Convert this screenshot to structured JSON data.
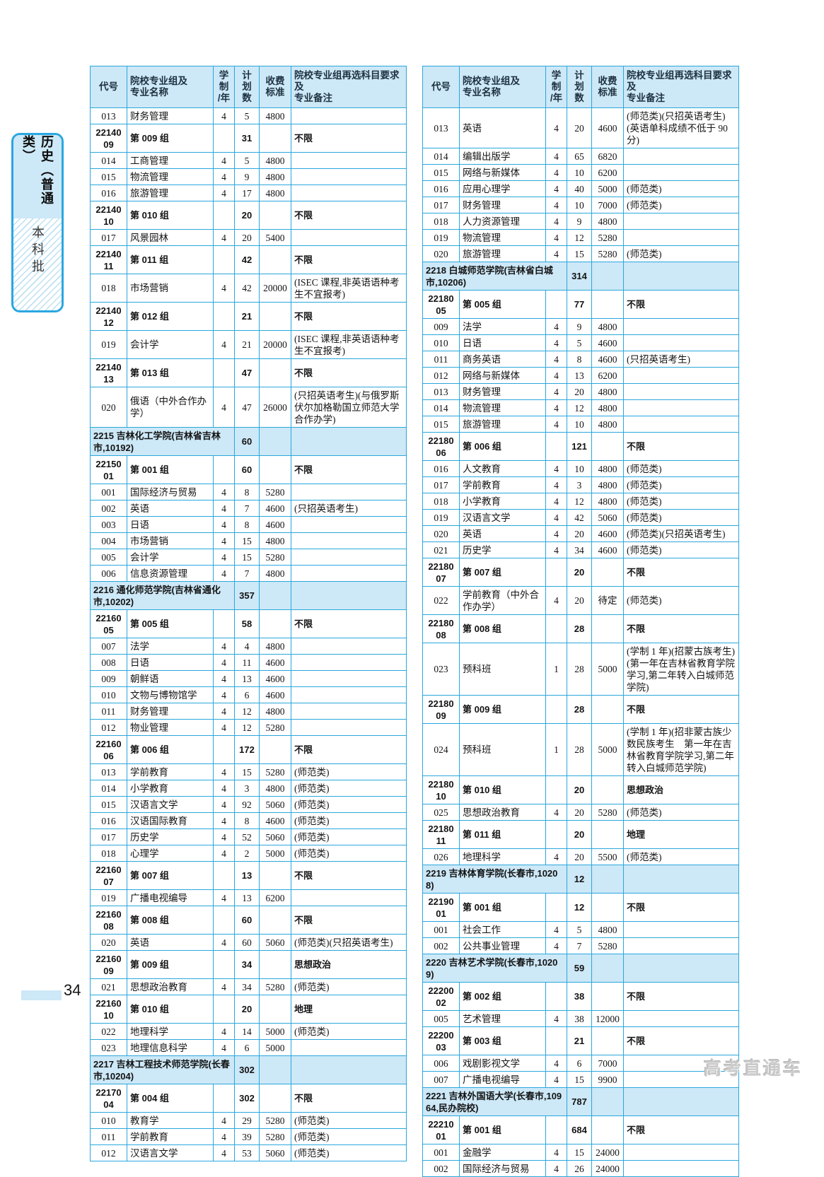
{
  "page": {
    "number": "34",
    "watermark": "高考直通车"
  },
  "sidebar": {
    "title": "历史（普通类）",
    "subtitle": "本科批"
  },
  "colors": {
    "table_border": "#2aa7dd",
    "tab_border": "#2aa7e0",
    "panel_bg": "#cde8f7",
    "stripe": "#bfe0f2"
  },
  "columns": [
    "代号",
    "院校专业组及\n专业名称",
    "学\n制\n/年",
    "计\n划\n数",
    "收费\n标准",
    "院校专业组再选科目要求及\n专业备注"
  ],
  "left_table": {
    "rows": [
      {
        "t": "m",
        "code": "013",
        "name": "财务管理",
        "yr": "4",
        "plan": "5",
        "fee": "4800",
        "note": ""
      },
      {
        "t": "g",
        "code": "2214009",
        "name": "第 009 组",
        "plan": "31",
        "note": "不限"
      },
      {
        "t": "m",
        "code": "014",
        "name": "工商管理",
        "yr": "4",
        "plan": "5",
        "fee": "4800",
        "note": ""
      },
      {
        "t": "m",
        "code": "015",
        "name": "物流管理",
        "yr": "4",
        "plan": "9",
        "fee": "4800",
        "note": ""
      },
      {
        "t": "m",
        "code": "016",
        "name": "旅游管理",
        "yr": "4",
        "plan": "17",
        "fee": "4800",
        "note": ""
      },
      {
        "t": "g",
        "code": "2214010",
        "name": "第 010 组",
        "plan": "20",
        "note": "不限"
      },
      {
        "t": "m",
        "code": "017",
        "name": "风景园林",
        "yr": "4",
        "plan": "20",
        "fee": "5400",
        "note": ""
      },
      {
        "t": "g",
        "code": "2214011",
        "name": "第 011 组",
        "plan": "42",
        "note": "不限"
      },
      {
        "t": "m",
        "code": "018",
        "name": "市场营销",
        "yr": "4",
        "plan": "42",
        "fee": "20000",
        "note": "(ISEC 课程,非英语语种考生不宜报考)"
      },
      {
        "t": "g",
        "code": "2214012",
        "name": "第 012 组",
        "plan": "21",
        "note": "不限"
      },
      {
        "t": "m",
        "code": "019",
        "name": "会计学",
        "yr": "4",
        "plan": "21",
        "fee": "20000",
        "note": "(ISEC 课程,非英语语种考生不宜报考)"
      },
      {
        "t": "g",
        "code": "2214013",
        "name": "第 013 组",
        "plan": "47",
        "note": "不限"
      },
      {
        "t": "m",
        "code": "020",
        "name": "俄语（中外合作办学）",
        "yr": "4",
        "plan": "47",
        "fee": "26000",
        "note": "(只招英语考生)(与俄罗斯伏尔加格勒国立师范大学合作办学)"
      },
      {
        "t": "i",
        "name": "2215 吉林化工学院(吉林省吉林市,10192)",
        "plan": "60"
      },
      {
        "t": "g",
        "code": "2215001",
        "name": "第 001 组",
        "plan": "60",
        "note": "不限"
      },
      {
        "t": "m",
        "code": "001",
        "name": "国际经济与贸易",
        "yr": "4",
        "plan": "8",
        "fee": "5280",
        "note": ""
      },
      {
        "t": "m",
        "code": "002",
        "name": "英语",
        "yr": "4",
        "plan": "7",
        "fee": "4600",
        "note": "(只招英语考生)"
      },
      {
        "t": "m",
        "code": "003",
        "name": "日语",
        "yr": "4",
        "plan": "8",
        "fee": "4600",
        "note": ""
      },
      {
        "t": "m",
        "code": "004",
        "name": "市场营销",
        "yr": "4",
        "plan": "15",
        "fee": "4800",
        "note": ""
      },
      {
        "t": "m",
        "code": "005",
        "name": "会计学",
        "yr": "4",
        "plan": "15",
        "fee": "5280",
        "note": ""
      },
      {
        "t": "m",
        "code": "006",
        "name": "信息资源管理",
        "yr": "4",
        "plan": "7",
        "fee": "4800",
        "note": ""
      },
      {
        "t": "i",
        "name": "2216 通化师范学院(吉林省通化市,10202)",
        "plan": "357"
      },
      {
        "t": "g",
        "code": "2216005",
        "name": "第 005 组",
        "plan": "58",
        "note": "不限"
      },
      {
        "t": "m",
        "code": "007",
        "name": "法学",
        "yr": "4",
        "plan": "4",
        "fee": "4800",
        "note": ""
      },
      {
        "t": "m",
        "code": "008",
        "name": "日语",
        "yr": "4",
        "plan": "11",
        "fee": "4600",
        "note": ""
      },
      {
        "t": "m",
        "code": "009",
        "name": "朝鲜语",
        "yr": "4",
        "plan": "13",
        "fee": "4600",
        "note": ""
      },
      {
        "t": "m",
        "code": "010",
        "name": "文物与博物馆学",
        "yr": "4",
        "plan": "6",
        "fee": "4600",
        "note": ""
      },
      {
        "t": "m",
        "code": "011",
        "name": "财务管理",
        "yr": "4",
        "plan": "12",
        "fee": "4800",
        "note": ""
      },
      {
        "t": "m",
        "code": "012",
        "name": "物业管理",
        "yr": "4",
        "plan": "12",
        "fee": "5280",
        "note": ""
      },
      {
        "t": "g",
        "code": "2216006",
        "name": "第 006 组",
        "plan": "172",
        "note": "不限"
      },
      {
        "t": "m",
        "code": "013",
        "name": "学前教育",
        "yr": "4",
        "plan": "15",
        "fee": "5280",
        "note": "(师范类)"
      },
      {
        "t": "m",
        "code": "014",
        "name": "小学教育",
        "yr": "4",
        "plan": "3",
        "fee": "4800",
        "note": "(师范类)"
      },
      {
        "t": "m",
        "code": "015",
        "name": "汉语言文学",
        "yr": "4",
        "plan": "92",
        "fee": "5060",
        "note": "(师范类)"
      },
      {
        "t": "m",
        "code": "016",
        "name": "汉语国际教育",
        "yr": "4",
        "plan": "8",
        "fee": "4600",
        "note": "(师范类)"
      },
      {
        "t": "m",
        "code": "017",
        "name": "历史学",
        "yr": "4",
        "plan": "52",
        "fee": "5060",
        "note": "(师范类)"
      },
      {
        "t": "m",
        "code": "018",
        "name": "心理学",
        "yr": "4",
        "plan": "2",
        "fee": "5000",
        "note": "(师范类)"
      },
      {
        "t": "g",
        "code": "2216007",
        "name": "第 007 组",
        "plan": "13",
        "note": "不限"
      },
      {
        "t": "m",
        "code": "019",
        "name": "广播电视编导",
        "yr": "4",
        "plan": "13",
        "fee": "6200",
        "note": ""
      },
      {
        "t": "g",
        "code": "2216008",
        "name": "第 008 组",
        "plan": "60",
        "note": "不限"
      },
      {
        "t": "m",
        "code": "020",
        "name": "英语",
        "yr": "4",
        "plan": "60",
        "fee": "5060",
        "note": "(师范类)(只招英语考生)"
      },
      {
        "t": "g",
        "code": "2216009",
        "name": "第 009 组",
        "plan": "34",
        "note": "思想政治"
      },
      {
        "t": "m",
        "code": "021",
        "name": "思想政治教育",
        "yr": "4",
        "plan": "34",
        "fee": "5280",
        "note": "(师范类)"
      },
      {
        "t": "g",
        "code": "2216010",
        "name": "第 010 组",
        "plan": "20",
        "note": "地理"
      },
      {
        "t": "m",
        "code": "022",
        "name": "地理科学",
        "yr": "4",
        "plan": "14",
        "fee": "5000",
        "note": "(师范类)"
      },
      {
        "t": "m",
        "code": "023",
        "name": "地理信息科学",
        "yr": "4",
        "plan": "6",
        "fee": "5000",
        "note": ""
      },
      {
        "t": "i",
        "name": "2217 吉林工程技术师范学院(长春市,10204)",
        "plan": "302"
      },
      {
        "t": "g",
        "code": "2217004",
        "name": "第 004 组",
        "plan": "302",
        "note": "不限"
      },
      {
        "t": "m",
        "code": "010",
        "name": "教育学",
        "yr": "4",
        "plan": "29",
        "fee": "5280",
        "note": "(师范类)"
      },
      {
        "t": "m",
        "code": "011",
        "name": "学前教育",
        "yr": "4",
        "plan": "39",
        "fee": "5280",
        "note": "(师范类)"
      },
      {
        "t": "m",
        "code": "012",
        "name": "汉语言文学",
        "yr": "4",
        "plan": "53",
        "fee": "5060",
        "note": "(师范类)"
      }
    ]
  },
  "right_table": {
    "rows": [
      {
        "t": "m",
        "code": "013",
        "name": "英语",
        "yr": "4",
        "plan": "20",
        "fee": "4600",
        "note": "(师范类)(只招英语考生)(英语单科成绩不低于 90 分)"
      },
      {
        "t": "m",
        "code": "014",
        "name": "编辑出版学",
        "yr": "4",
        "plan": "65",
        "fee": "6820",
        "note": ""
      },
      {
        "t": "m",
        "code": "015",
        "name": "网络与新媒体",
        "yr": "4",
        "plan": "10",
        "fee": "6200",
        "note": ""
      },
      {
        "t": "m",
        "code": "016",
        "name": "应用心理学",
        "yr": "4",
        "plan": "40",
        "fee": "5000",
        "note": "(师范类)"
      },
      {
        "t": "m",
        "code": "017",
        "name": "财务管理",
        "yr": "4",
        "plan": "10",
        "fee": "7000",
        "note": "(师范类)"
      },
      {
        "t": "m",
        "code": "018",
        "name": "人力资源管理",
        "yr": "4",
        "plan": "9",
        "fee": "4800",
        "note": ""
      },
      {
        "t": "m",
        "code": "019",
        "name": "物流管理",
        "yr": "4",
        "plan": "12",
        "fee": "5280",
        "note": ""
      },
      {
        "t": "m",
        "code": "020",
        "name": "旅游管理",
        "yr": "4",
        "plan": "15",
        "fee": "5280",
        "note": "(师范类)"
      },
      {
        "t": "i",
        "name": "2218 白城师范学院(吉林省白城市,10206)",
        "plan": "314"
      },
      {
        "t": "g",
        "code": "2218005",
        "name": "第 005 组",
        "plan": "77",
        "note": "不限"
      },
      {
        "t": "m",
        "code": "009",
        "name": "法学",
        "yr": "4",
        "plan": "9",
        "fee": "4800",
        "note": ""
      },
      {
        "t": "m",
        "code": "010",
        "name": "日语",
        "yr": "4",
        "plan": "5",
        "fee": "4600",
        "note": ""
      },
      {
        "t": "m",
        "code": "011",
        "name": "商务英语",
        "yr": "4",
        "plan": "8",
        "fee": "4600",
        "note": "(只招英语考生)"
      },
      {
        "t": "m",
        "code": "012",
        "name": "网络与新媒体",
        "yr": "4",
        "plan": "13",
        "fee": "6200",
        "note": ""
      },
      {
        "t": "m",
        "code": "013",
        "name": "财务管理",
        "yr": "4",
        "plan": "20",
        "fee": "4800",
        "note": ""
      },
      {
        "t": "m",
        "code": "014",
        "name": "物流管理",
        "yr": "4",
        "plan": "12",
        "fee": "4800",
        "note": ""
      },
      {
        "t": "m",
        "code": "015",
        "name": "旅游管理",
        "yr": "4",
        "plan": "10",
        "fee": "4800",
        "note": ""
      },
      {
        "t": "g",
        "code": "2218006",
        "name": "第 006 组",
        "plan": "121",
        "note": "不限"
      },
      {
        "t": "m",
        "code": "016",
        "name": "人文教育",
        "yr": "4",
        "plan": "10",
        "fee": "4800",
        "note": "(师范类)"
      },
      {
        "t": "m",
        "code": "017",
        "name": "学前教育",
        "yr": "4",
        "plan": "3",
        "fee": "4800",
        "note": "(师范类)"
      },
      {
        "t": "m",
        "code": "018",
        "name": "小学教育",
        "yr": "4",
        "plan": "12",
        "fee": "4800",
        "note": "(师范类)"
      },
      {
        "t": "m",
        "code": "019",
        "name": "汉语言文学",
        "yr": "4",
        "plan": "42",
        "fee": "5060",
        "note": "(师范类)"
      },
      {
        "t": "m",
        "code": "020",
        "name": "英语",
        "yr": "4",
        "plan": "20",
        "fee": "4600",
        "note": "(师范类)(只招英语考生)"
      },
      {
        "t": "m",
        "code": "021",
        "name": "历史学",
        "yr": "4",
        "plan": "34",
        "fee": "4600",
        "note": "(师范类)"
      },
      {
        "t": "g",
        "code": "2218007",
        "name": "第 007 组",
        "plan": "20",
        "note": "不限"
      },
      {
        "t": "m",
        "code": "022",
        "name": "学前教育（中外合作办学）",
        "yr": "4",
        "plan": "20",
        "fee": "待定",
        "note": "(师范类)"
      },
      {
        "t": "g",
        "code": "2218008",
        "name": "第 008 组",
        "plan": "28",
        "note": "不限"
      },
      {
        "t": "m",
        "code": "023",
        "name": "预科班",
        "yr": "1",
        "plan": "28",
        "fee": "5000",
        "note": "(学制 1 年)(招蒙古族考生)(第一年在吉林省教育学院学习,第二年转入白城师范学院)"
      },
      {
        "t": "g",
        "code": "2218009",
        "name": "第 009 组",
        "plan": "28",
        "note": "不限"
      },
      {
        "t": "m",
        "code": "024",
        "name": "预科班",
        "yr": "1",
        "plan": "28",
        "fee": "5000",
        "note": "(学制 1 年)(招非蒙古族少数民族考生　第一年在吉林省教育学院学习,第二年转入白城师范学院)"
      },
      {
        "t": "g",
        "code": "2218010",
        "name": "第 010 组",
        "plan": "20",
        "note": "思想政治"
      },
      {
        "t": "m",
        "code": "025",
        "name": "思想政治教育",
        "yr": "4",
        "plan": "20",
        "fee": "5280",
        "note": "(师范类)"
      },
      {
        "t": "g",
        "code": "2218011",
        "name": "第 011 组",
        "plan": "20",
        "note": "地理"
      },
      {
        "t": "m",
        "code": "026",
        "name": "地理科学",
        "yr": "4",
        "plan": "20",
        "fee": "5500",
        "note": "(师范类)"
      },
      {
        "t": "i",
        "name": "2219 吉林体育学院(长春市,10208)",
        "plan": "12"
      },
      {
        "t": "g",
        "code": "2219001",
        "name": "第 001 组",
        "plan": "12",
        "note": "不限"
      },
      {
        "t": "m",
        "code": "001",
        "name": "社会工作",
        "yr": "4",
        "plan": "5",
        "fee": "4800",
        "note": ""
      },
      {
        "t": "m",
        "code": "002",
        "name": "公共事业管理",
        "yr": "4",
        "plan": "7",
        "fee": "5280",
        "note": ""
      },
      {
        "t": "i",
        "name": "2220 吉林艺术学院(长春市,10209)",
        "plan": "59"
      },
      {
        "t": "g",
        "code": "2220002",
        "name": "第 002 组",
        "plan": "38",
        "note": "不限"
      },
      {
        "t": "m",
        "code": "005",
        "name": "艺术管理",
        "yr": "4",
        "plan": "38",
        "fee": "12000",
        "note": ""
      },
      {
        "t": "g",
        "code": "2220003",
        "name": "第 003 组",
        "plan": "21",
        "note": "不限"
      },
      {
        "t": "m",
        "code": "006",
        "name": "戏剧影视文学",
        "yr": "4",
        "plan": "6",
        "fee": "7000",
        "note": ""
      },
      {
        "t": "m",
        "code": "007",
        "name": "广播电视编导",
        "yr": "4",
        "plan": "15",
        "fee": "9900",
        "note": ""
      },
      {
        "t": "i",
        "name": "2221 吉林外国语大学(长春市,10964,民办院校)",
        "plan": "787"
      },
      {
        "t": "g",
        "code": "2221001",
        "name": "第 001 组",
        "plan": "684",
        "note": "不限"
      },
      {
        "t": "m",
        "code": "001",
        "name": "金融学",
        "yr": "4",
        "plan": "15",
        "fee": "24000",
        "note": ""
      },
      {
        "t": "m",
        "code": "002",
        "name": "国际经济与贸易",
        "yr": "4",
        "plan": "26",
        "fee": "24000",
        "note": ""
      }
    ]
  }
}
